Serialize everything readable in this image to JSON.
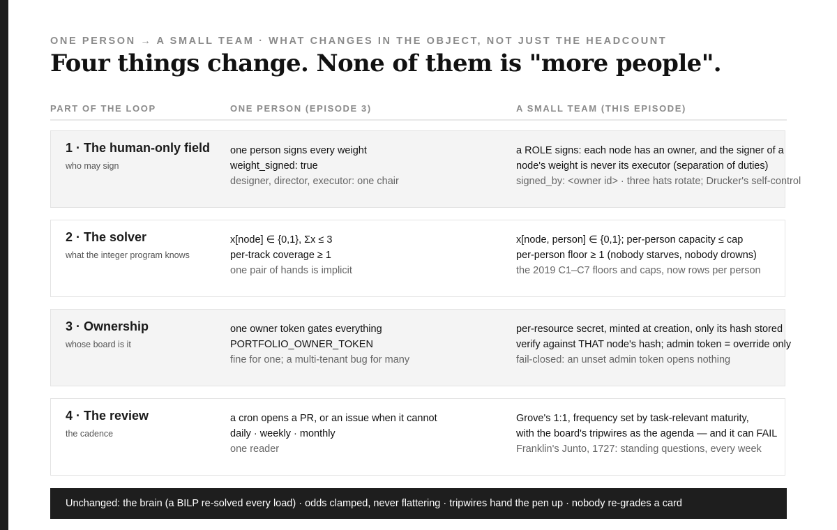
{
  "kicker": "ONE PERSON → A SMALL TEAM · WHAT CHANGES IN THE OBJECT, NOT JUST THE HEADCOUNT",
  "headline": "Four things change. None of them is \"more people\".",
  "columns": {
    "part": "PART OF THE LOOP",
    "one": "ONE PERSON (EPISODE 3)",
    "team": "A SMALL TEAM (THIS EPISODE)"
  },
  "rows": [
    {
      "title": "1 · The human-only field",
      "subtitle": "who may sign",
      "one": [
        "one person signs every weight",
        "weight_signed: true",
        "designer, director, executor: one chair"
      ],
      "team": [
        "a ROLE signs: each node has an owner, and the signer of a",
        "node's weight is never its executor (separation of duties)",
        "signed_by: <owner id> · three hats rotate; Drucker's self-control"
      ]
    },
    {
      "title": "2 · The solver",
      "subtitle": "what the integer program knows",
      "one": [
        "x[node] ∈ {0,1}, Σx ≤ 3",
        "per-track coverage ≥ 1",
        "one pair of hands is implicit"
      ],
      "team": [
        "x[node, person] ∈ {0,1}; per-person capacity ≤ cap",
        "per-person floor ≥ 1 (nobody starves, nobody drowns)",
        "the 2019 C1–C7 floors and caps, now rows per person"
      ]
    },
    {
      "title": "3 · Ownership",
      "subtitle": "whose board is it",
      "one": [
        "one owner token gates everything",
        "PORTFOLIO_OWNER_TOKEN",
        "fine for one; a multi-tenant bug for many"
      ],
      "team": [
        "per-resource secret, minted at creation, only its hash stored",
        "verify against THAT node's hash; admin token = override only",
        "fail-closed: an unset admin token opens nothing"
      ]
    },
    {
      "title": "4 · The review",
      "subtitle": "the cadence",
      "one": [
        "a cron opens a PR, or an issue when it cannot",
        "daily · weekly · monthly",
        "one reader"
      ],
      "team": [
        "Grove's 1:1, frequency set by task-relevant maturity,",
        "with the board's tripwires as the agenda — and it can FAIL",
        "Franklin's Junto, 1727: standing questions, every week"
      ]
    }
  ],
  "footer": "Unchanged: the brain (a BILP re-solved every load) · odds clamped, never flattering · tripwires hand the pen up · nobody re-grades a card"
}
